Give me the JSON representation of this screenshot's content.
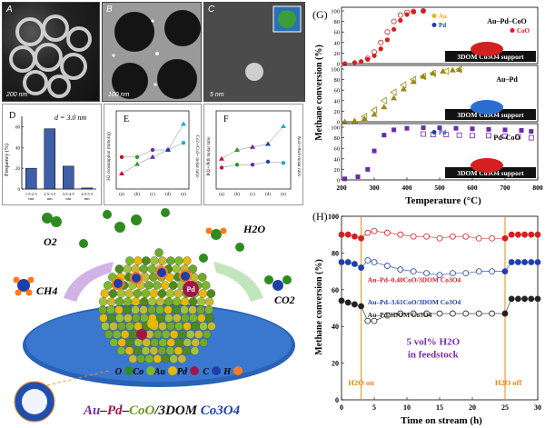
{
  "micrographs": [
    {
      "label": "A",
      "scale": "200 nm"
    },
    {
      "label": "B",
      "scale": "100 nm"
    },
    {
      "label": "C",
      "scale": "5 nm"
    }
  ],
  "panel_d": {
    "label": "D",
    "annotation": "d = 3.0 nm",
    "ylabel": "Frequency (%)",
    "yticks": [
      "0",
      "20",
      "40",
      "60"
    ],
    "categories": [
      "1.5-2.5\nnm",
      "2.5-3.5\nnm",
      "3.5-4.5\nnm",
      "4.5-5.5\nnm"
    ],
    "values": [
      20,
      58,
      22,
      1
    ]
  },
  "panel_e": {
    "label": "E",
    "ylabel_left": "H2 consumption (mmol/g)",
    "ylabel_right": "Co2+/Co3+ molar ratio",
    "xticks": [
      "(a)",
      "(b)",
      "(c)",
      "(d)",
      "(e)"
    ]
  },
  "panel_f": {
    "label": "F",
    "ylabel_left": "Pd2+/Pd0 molar ratio",
    "ylabel_right": "Au3+/Au0 molar ratio",
    "xticks": [
      "(a)",
      "(b)",
      "(c)",
      "(d)",
      "(e)"
    ]
  },
  "schematic": {
    "labels": {
      "o2": "O2",
      "h2o": "H2O",
      "ch4": "CH4",
      "co2": "CO2",
      "pd": "Pd"
    },
    "legend": [
      "O",
      "Co",
      "Au",
      "Pd",
      "C",
      "H"
    ],
    "legend_colors": [
      "#2e8b1f",
      "#7ab82a",
      "#e6b800",
      "#a0164a",
      "#1e3fa8",
      "#ff7a1a"
    ],
    "caption": [
      "Au",
      "–",
      "Pd",
      "–",
      "CoO",
      "/3DOM ",
      "Co3O4"
    ]
  },
  "chart_g": {
    "panel_label": "(G)",
    "ylabel": "Methane conversion (%)",
    "xlabel": "Temperature (°C)",
    "xticks": [
      "200",
      "300",
      "400",
      "500",
      "600",
      "700",
      "800"
    ],
    "yticks": [
      "0",
      "20",
      "40",
      "60",
      "80",
      "100"
    ],
    "subpanels": [
      {
        "legend": [
          "Au",
          "Pd",
          "CoO"
        ],
        "title": "Au–Pd–CoO",
        "support": "3DOM Co3O4 support"
      },
      {
        "legend": [],
        "title": "Au–Pd",
        "support": "3DOM Co3O4 support"
      },
      {
        "legend": [
          "Pd"
        ],
        "title": "Pd–CoO",
        "support": "3DOM Co3O4 support"
      }
    ]
  },
  "chart_h": {
    "panel_label": "(H)",
    "ylabel": "Methane conversion (%)",
    "xlabel": "Time on stream (h)",
    "xticks": [
      "0",
      "5",
      "10",
      "15",
      "20",
      "25",
      "30"
    ],
    "yticks": [
      "0",
      "20",
      "40",
      "60",
      "80",
      "100"
    ],
    "series_labels": [
      "Au–Pd–0.40CoO/3DOM Co3O4",
      "Au–Pd–3.61CoO/3DOM Co3O4",
      "Au–Pd/3DOM Co3O4"
    ],
    "annotation": [
      "5 vol% H2O",
      "in feedstock"
    ],
    "h2o_on": "H2O on",
    "h2o_off": "H2O off"
  },
  "chart_data": [
    {
      "type": "bar",
      "categories": [
        "1.5-2.5 nm",
        "2.5-3.5 nm",
        "3.5-4.5 nm",
        "4.5-5.5 nm"
      ],
      "values": [
        20,
        58,
        22,
        1
      ],
      "ylabel": "Frequency (%)",
      "ylim": [
        0,
        70
      ]
    },
    {
      "type": "scatter",
      "x_ticks": [
        "(a)",
        "(b)",
        "(c)",
        "(d)",
        "(e)"
      ],
      "series": [
        {
          "values": [
            0.5,
            0.9,
            1.2,
            1.5,
            2.6
          ]
        },
        {
          "values": [
            1.0,
            1.0,
            1.1,
            1.1,
            1.2
          ]
        }
      ]
    },
    {
      "type": "scatter",
      "x_ticks": [
        "(a)",
        "(b)",
        "(c)",
        "(d)",
        "(e)"
      ],
      "series": [
        {
          "values": [
            0.45,
            0.6,
            0.65,
            0.7,
            1.0
          ]
        },
        {
          "values": [
            0.3,
            0.35,
            0.35,
            0.4,
            0.38
          ]
        }
      ]
    },
    {
      "type": "line",
      "xlabel": "Temperature (°C)",
      "ylabel": "Methane conversion (%)",
      "xlim": [
        200,
        800
      ],
      "ylim": [
        0,
        100
      ],
      "panels": [
        {
          "title": "Au–Pd–CoO/3DOM Co3O4",
          "heating": {
            "x": [
              210,
              240,
              260,
              280,
              300,
              320,
              340,
              360,
              380,
              400,
              420,
              450
            ],
            "y": [
              0,
              2,
              4,
              8,
              15,
              28,
              45,
              65,
              82,
              93,
              98,
              100
            ]
          },
          "cooling": {
            "x": [
              450,
              420,
              400,
              380,
              360,
              340,
              320,
              300,
              280
            ],
            "y": [
              100,
              99,
              97,
              92,
              80,
              60,
              40,
              22,
              10
            ]
          }
        },
        {
          "title": "Au–Pd/3DOM Co3O4",
          "heating": {
            "x": [
              210,
              240,
              270,
              300,
              330,
              360,
              390,
              420,
              450,
              480,
              510,
              540,
              560
            ],
            "y": [
              0,
              2,
              6,
              14,
              28,
              45,
              62,
              76,
              86,
              92,
              96,
              98,
              99
            ]
          },
          "cooling": {
            "x": [
              560,
              520,
              480,
              450,
              420,
              390,
              360,
              330,
              300,
              270
            ],
            "y": [
              99,
              96,
              92,
              86,
              80,
              70,
              56,
              40,
              22,
              10
            ]
          }
        },
        {
          "title": "Pd–CoO/3DOM Co3O4",
          "heating": {
            "x": [
              210,
              250,
              280,
              300,
              330,
              360,
              400,
              450,
              500,
              550,
              600,
              650,
              700,
              750,
              780
            ],
            "y": [
              2,
              6,
              20,
              55,
              85,
              95,
              98,
              99,
              99,
              98,
              97,
              96,
              95,
              94,
              92
            ]
          },
          "cooling": {
            "x": [
              780,
              740,
              700,
              650,
              600,
              560,
              520,
              480,
              450
            ],
            "y": [
              80,
              82,
              83,
              84,
              84,
              85,
              86,
              86,
              87
            ]
          }
        }
      ]
    },
    {
      "type": "line",
      "xlabel": "Time on stream (h)",
      "ylabel": "Methane conversion (%)",
      "xlim": [
        0,
        30
      ],
      "ylim": [
        0,
        100
      ],
      "series": [
        {
          "name": "Au–Pd–0.40CoO/3DOM Co3O4",
          "x": [
            0,
            1,
            2,
            3,
            4,
            5,
            7,
            9,
            11,
            13,
            15,
            17,
            19,
            21,
            23,
            25,
            26,
            27,
            28,
            29,
            30
          ],
          "y": [
            90,
            90,
            89,
            88,
            91,
            92,
            91,
            90,
            89,
            89,
            88,
            89,
            89,
            88,
            88,
            88,
            90,
            90,
            90,
            90,
            90
          ]
        },
        {
          "name": "Au–Pd–3.61CoO/3DOM Co3O4",
          "x": [
            0,
            1,
            2,
            3,
            4,
            5,
            7,
            9,
            11,
            13,
            15,
            17,
            19,
            21,
            23,
            25,
            26,
            27,
            28,
            29,
            30
          ],
          "y": [
            75,
            75,
            74,
            72,
            76,
            75,
            73,
            71,
            70,
            69,
            68,
            69,
            69,
            70,
            70,
            70,
            75,
            75,
            75,
            75,
            75
          ]
        },
        {
          "name": "Au–Pd/3DOM Co3O4",
          "x": [
            0,
            1,
            2,
            3,
            4,
            5,
            7,
            9,
            11,
            13,
            15,
            17,
            19,
            21,
            23,
            25,
            26,
            27,
            28,
            29,
            30
          ],
          "y": [
            54,
            53,
            52,
            51,
            43,
            43,
            46,
            47,
            47,
            47,
            47,
            47,
            47,
            47,
            47,
            47,
            55,
            55,
            55,
            55,
            55
          ]
        }
      ]
    }
  ]
}
